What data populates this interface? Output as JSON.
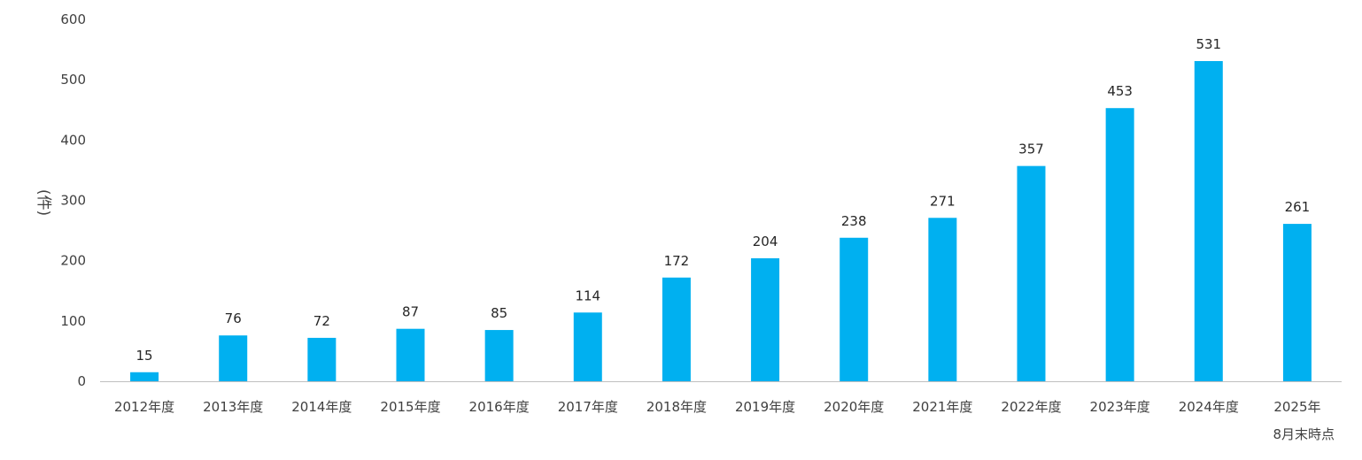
{
  "chart_data": {
    "type": "bar",
    "categories": [
      [
        "2012年度"
      ],
      [
        "2013年度"
      ],
      [
        "2014年度"
      ],
      [
        "2015年度"
      ],
      [
        "2016年度"
      ],
      [
        "2017年度"
      ],
      [
        "2018年度"
      ],
      [
        "2019年度"
      ],
      [
        "2020年度"
      ],
      [
        "2021年度"
      ],
      [
        "2022年度"
      ],
      [
        "2023年度"
      ],
      [
        "2024年度"
      ],
      [
        "2025年",
        "8月末時点"
      ]
    ],
    "values": [
      15,
      76,
      72,
      87,
      85,
      114,
      172,
      204,
      238,
      271,
      357,
      453,
      531,
      261
    ],
    "ylabel": "(件)",
    "ylim": [
      0,
      600
    ],
    "yticks": [
      0,
      100,
      200,
      300,
      400,
      500,
      600
    ],
    "bar_color": "#00B0F0",
    "axis_color": "#BFBFBF",
    "grid": false,
    "legend": "none"
  }
}
